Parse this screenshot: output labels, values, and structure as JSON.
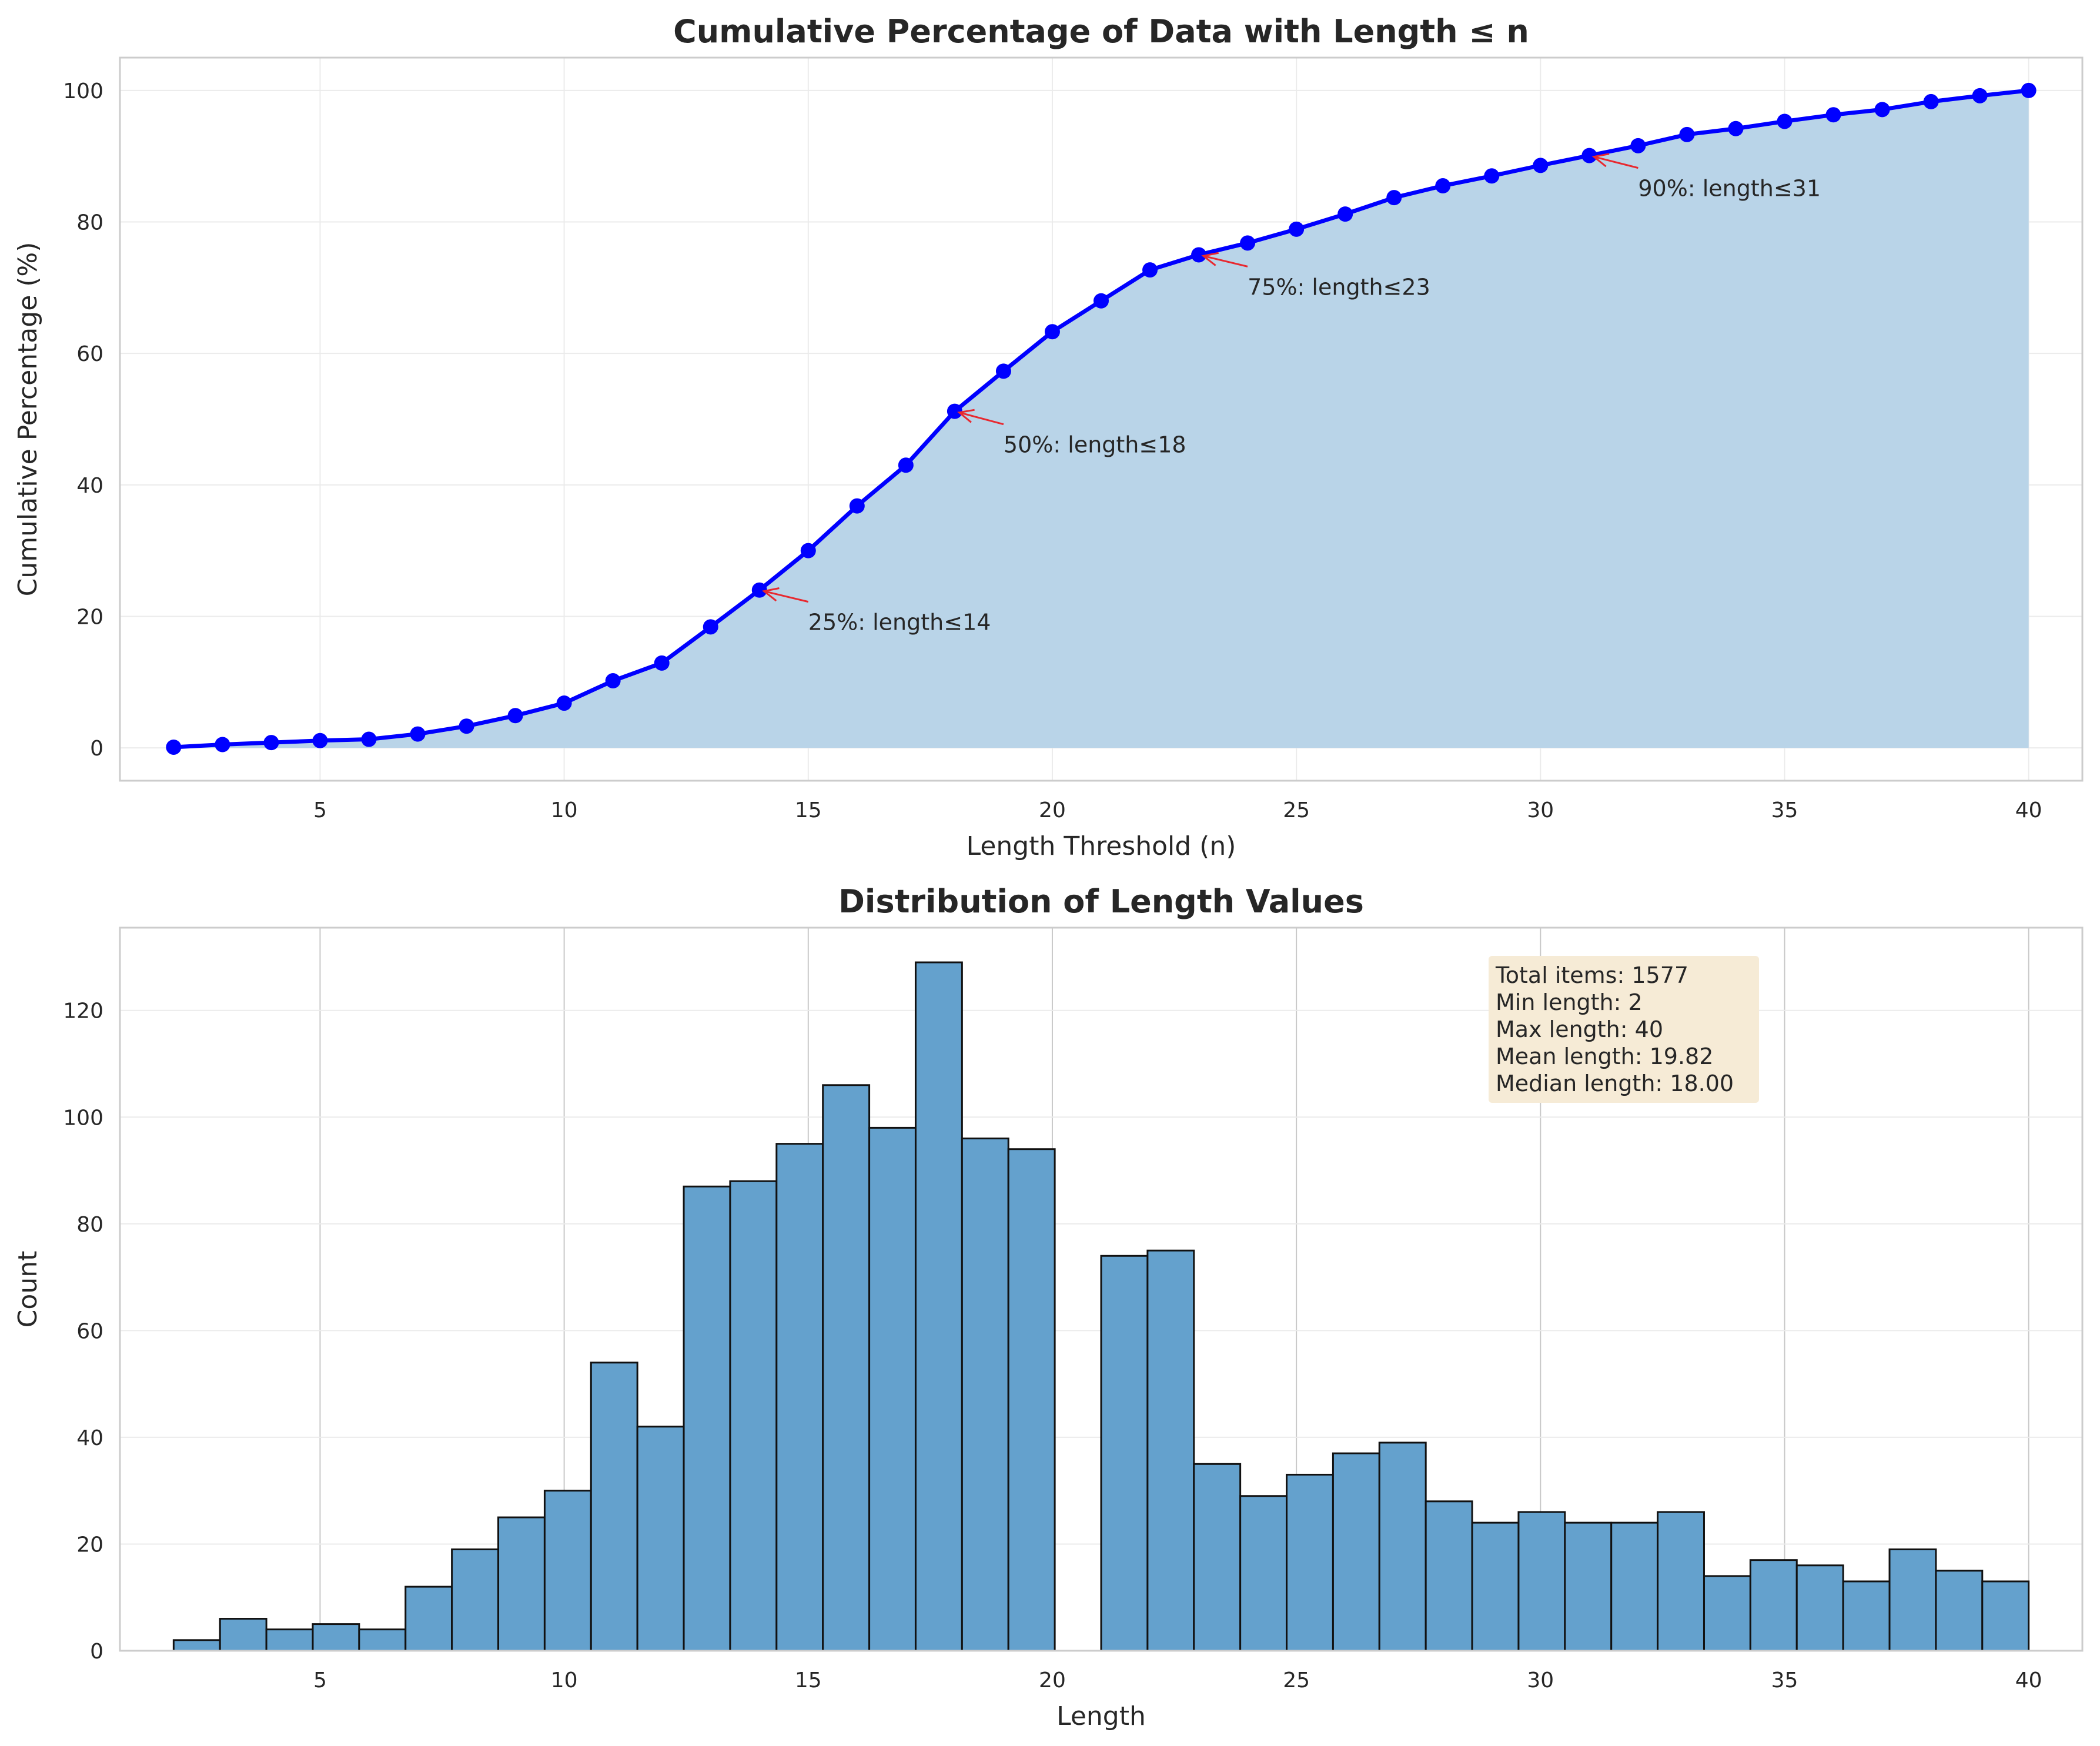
{
  "colors": {
    "line": "#0000ff",
    "fill": "#b9d4e8",
    "bar": "#64a1cd",
    "bar_edge": "#111111",
    "arrow": "#e8282f",
    "statbox": "#f6ebd6",
    "grid_light": "#ebebeb",
    "grid_dark": "#c8c8c8",
    "spine": "#cccccc"
  },
  "chart_data": [
    {
      "type": "line",
      "title": "Cumulative Percentage of Data with Length ≤ n",
      "xlabel": "Length Threshold (n)",
      "ylabel": "Cumulative Percentage (%)",
      "xlim": [
        0.9,
        41.1
      ],
      "ylim": [
        -5,
        105
      ],
      "xticks": [
        5,
        10,
        15,
        20,
        25,
        30,
        35,
        40
      ],
      "yticks": [
        0,
        20,
        40,
        60,
        80,
        100
      ],
      "grid": true,
      "filled_area": true,
      "x": [
        2,
        3,
        4,
        5,
        6,
        7,
        8,
        9,
        10,
        11,
        12,
        13,
        14,
        15,
        16,
        17,
        18,
        19,
        20,
        21,
        22,
        23,
        24,
        25,
        26,
        27,
        28,
        29,
        30,
        31,
        32,
        33,
        34,
        35,
        36,
        37,
        38,
        39,
        40
      ],
      "y": [
        0.1,
        0.5,
        0.8,
        1.1,
        1.3,
        2.1,
        3.3,
        4.9,
        6.8,
        10.2,
        12.9,
        18.4,
        24.0,
        30.0,
        36.8,
        43.0,
        51.2,
        57.3,
        63.3,
        68.0,
        72.7,
        75.0,
        76.8,
        78.9,
        81.2,
        83.7,
        85.5,
        87.0,
        88.6,
        90.1,
        91.6,
        93.3,
        94.2,
        95.3,
        96.3,
        97.1,
        98.3,
        99.2,
        100.0
      ],
      "annotations": [
        {
          "text": "25%: length≤14",
          "x": 14,
          "y": 24.0,
          "text_x": 15,
          "text_y": 19
        },
        {
          "text": "50%: length≤18",
          "x": 18,
          "y": 51.2,
          "text_x": 19,
          "text_y": 46
        },
        {
          "text": "75%: length≤23",
          "x": 23,
          "y": 75.0,
          "text_x": 24,
          "text_y": 70
        },
        {
          "text": "90%: length≤31",
          "x": 31,
          "y": 90.1,
          "text_x": 32,
          "text_y": 85
        }
      ]
    },
    {
      "type": "bar",
      "title": "Distribution of Length Values",
      "xlabel": "Length",
      "ylabel": "Count",
      "xlim": [
        0.9,
        41.1
      ],
      "ylim": [
        0,
        135.5
      ],
      "xticks": [
        5,
        10,
        15,
        20,
        25,
        30,
        35,
        40
      ],
      "yticks": [
        0,
        20,
        40,
        60,
        80,
        100,
        120
      ],
      "grid": true,
      "bin_width": 0.95,
      "bin_starts": [
        2,
        2.95,
        3.9,
        4.85,
        5.8,
        6.75,
        7.7,
        8.65,
        9.6,
        10.55,
        11.5,
        12.45,
        13.4,
        14.35,
        15.3,
        16.25,
        17.2,
        18.15,
        19.1,
        20.05,
        21,
        21.95,
        22.9,
        23.85,
        24.8,
        25.75,
        26.7,
        27.65,
        28.6,
        29.55,
        30.5,
        31.45,
        32.4,
        33.35,
        34.3,
        35.25,
        36.2,
        37.15,
        38.1,
        39.05
      ],
      "counts": [
        2,
        6,
        4,
        5,
        4,
        12,
        19,
        25,
        30,
        54,
        42,
        87,
        88,
        95,
        106,
        98,
        129,
        96,
        94,
        0,
        74,
        75,
        35,
        29,
        33,
        37,
        39,
        28,
        24,
        26,
        24,
        24,
        26,
        14,
        17,
        16,
        13,
        19,
        15,
        13
      ],
      "stats": {
        "location": "upper-right",
        "lines": [
          "Total items: 1577",
          "Min length: 2",
          "Max length: 40",
          "Mean length: 19.82",
          "Median length: 18.00"
        ]
      }
    }
  ]
}
